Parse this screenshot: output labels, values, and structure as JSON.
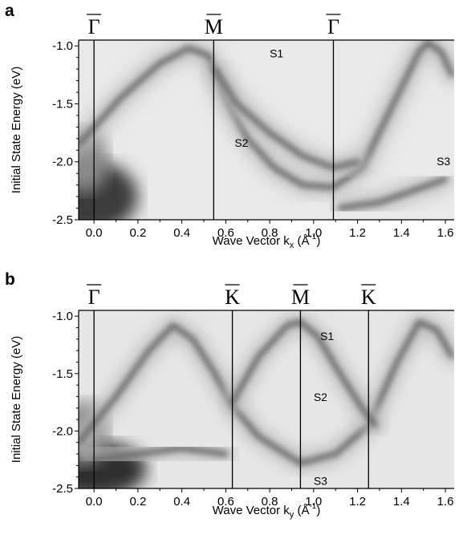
{
  "chart_data": [
    {
      "type": "heatmap",
      "panel_label": "a",
      "xlabel": {
        "main": "Wave Vector k",
        "sub": "x",
        "unit_open": " (Å",
        "unit_sup": "-1",
        "unit_close": ")"
      },
      "ylabel": "Initial State Energy (eV)",
      "xlim": [
        -0.07,
        1.64
      ],
      "ylim": [
        -2.5,
        -0.95
      ],
      "x_ticks": [
        0.0,
        0.2,
        0.4,
        0.6,
        0.8,
        1.0,
        1.2,
        1.4,
        1.6
      ],
      "x_tick_labels": [
        "0.0",
        "0.2",
        "0.4",
        "0.6",
        "0.8",
        "1.0",
        "1.2",
        "1.4",
        "1.6"
      ],
      "y_ticks": [
        -1.0,
        -1.5,
        -2.0,
        -2.5
      ],
      "y_tick_labels": [
        "-1.0",
        "-1.5",
        "-2.0",
        "-2.5"
      ],
      "symmetry_points": [
        {
          "label": "Γ",
          "x": 0.0
        },
        {
          "label": "M",
          "x": 0.545
        },
        {
          "label": "Γ",
          "x": 1.09
        }
      ],
      "band_labels": [
        {
          "text": "S1",
          "x": 0.8,
          "y": -1.1
        },
        {
          "text": "S2",
          "x": 0.64,
          "y": -1.87
        },
        {
          "text": "S3",
          "x": 1.56,
          "y": -2.03
        }
      ],
      "bands": [
        {
          "name": "S2",
          "points": [
            [
              -0.07,
              -1.85
            ],
            [
              0.12,
              -1.45
            ],
            [
              0.3,
              -1.15
            ],
            [
              0.43,
              -1.02
            ],
            [
              0.52,
              -1.08
            ],
            [
              0.6,
              -1.45
            ],
            [
              0.7,
              -1.8
            ],
            [
              0.82,
              -2.05
            ],
            [
              0.95,
              -2.2
            ],
            [
              1.09,
              -2.22
            ],
            [
              1.22,
              -2.05
            ],
            [
              1.35,
              -1.55
            ],
            [
              1.48,
              -1.05
            ],
            [
              1.52,
              -0.97
            ],
            [
              1.58,
              -1.05
            ],
            [
              1.63,
              -1.25
            ]
          ]
        },
        {
          "name": "S1",
          "points": [
            [
              0.55,
              -1.2
            ],
            [
              0.65,
              -1.5
            ],
            [
              0.8,
              -1.75
            ],
            [
              0.95,
              -1.95
            ],
            [
              1.09,
              -2.05
            ],
            [
              1.2,
              -2.0
            ]
          ]
        },
        {
          "name": "S3",
          "points": [
            [
              1.12,
              -2.4
            ],
            [
              1.3,
              -2.35
            ],
            [
              1.45,
              -2.25
            ],
            [
              1.6,
              -2.15
            ]
          ]
        }
      ],
      "shading": "grayscale intensity; darkest near k=0 at -2.2 to -2.5 eV"
    },
    {
      "type": "heatmap",
      "panel_label": "b",
      "xlabel": {
        "main": "Wave Vector k",
        "sub": "y",
        "unit_open": " (Å",
        "unit_sup": "-1",
        "unit_close": ")"
      },
      "ylabel": "Initial State Energy (eV)",
      "xlim": [
        -0.07,
        1.64
      ],
      "ylim": [
        -2.5,
        -0.95
      ],
      "x_ticks": [
        0.0,
        0.2,
        0.4,
        0.6,
        0.8,
        1.0,
        1.2,
        1.4,
        1.6
      ],
      "x_tick_labels": [
        "0.0",
        "0.2",
        "0.4",
        "0.6",
        "0.8",
        "1.0",
        "1.2",
        "1.4",
        "1.6"
      ],
      "y_ticks": [
        -1.0,
        -1.5,
        -2.0,
        -2.5
      ],
      "y_tick_labels": [
        "-1.0",
        "-1.5",
        "-2.0",
        "-2.5"
      ],
      "symmetry_points": [
        {
          "label": "Γ",
          "x": 0.0
        },
        {
          "label": "K",
          "x": 0.63
        },
        {
          "label": "M",
          "x": 0.94
        },
        {
          "label": "K",
          "x": 1.25
        }
      ],
      "band_labels": [
        {
          "text": "S1",
          "x": 1.03,
          "y": -1.21
        },
        {
          "text": "S2",
          "x": 1.0,
          "y": -1.74
        },
        {
          "text": "S3",
          "x": 1.0,
          "y": -2.47
        }
      ],
      "bands": [
        {
          "name": "S2",
          "points": [
            [
              -0.07,
              -2.1
            ],
            [
              0.1,
              -1.7
            ],
            [
              0.25,
              -1.3
            ],
            [
              0.36,
              -1.08
            ],
            [
              0.45,
              -1.2
            ],
            [
              0.55,
              -1.5
            ],
            [
              0.63,
              -1.78
            ],
            [
              0.75,
              -2.05
            ],
            [
              0.94,
              -2.28
            ],
            [
              1.1,
              -2.2
            ],
            [
              1.25,
              -1.95
            ],
            [
              1.38,
              -1.4
            ],
            [
              1.48,
              -1.05
            ],
            [
              1.56,
              -1.12
            ],
            [
              1.63,
              -1.35
            ]
          ]
        },
        {
          "name": "S1",
          "points": [
            [
              0.63,
              -1.75
            ],
            [
              0.75,
              -1.35
            ],
            [
              0.88,
              -1.08
            ],
            [
              0.94,
              -1.05
            ],
            [
              1.02,
              -1.18
            ],
            [
              1.12,
              -1.5
            ],
            [
              1.22,
              -1.8
            ],
            [
              1.28,
              -1.95
            ]
          ]
        },
        {
          "name": "S3",
          "points": [
            [
              0.0,
              -2.25
            ],
            [
              0.2,
              -2.2
            ],
            [
              0.4,
              -2.15
            ],
            [
              0.6,
              -2.2
            ]
          ]
        }
      ],
      "shading": "grayscale intensity; darkest near k=0 at -2.2 to -2.5 eV"
    }
  ]
}
